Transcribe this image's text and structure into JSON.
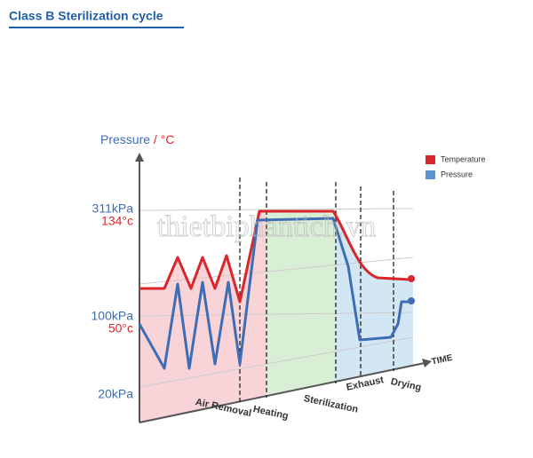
{
  "header": {
    "title": "Class B Sterilization cycle"
  },
  "axis": {
    "y_label": "Pressure",
    "y_unit": "/ °C",
    "x_label": "TIME"
  },
  "levels": [
    {
      "pressure": "311kPa",
      "temperature": "134°c"
    },
    {
      "pressure": "100kPa",
      "temperature": "50°c"
    },
    {
      "pressure": "20kPa"
    }
  ],
  "legend": [
    "Temperature",
    "Pressure"
  ],
  "phases": [
    "Air Removal",
    "Heating",
    "Sterilization",
    "Exhaust",
    "Drying"
  ],
  "watermark": "thietbiphantich.vn"
}
